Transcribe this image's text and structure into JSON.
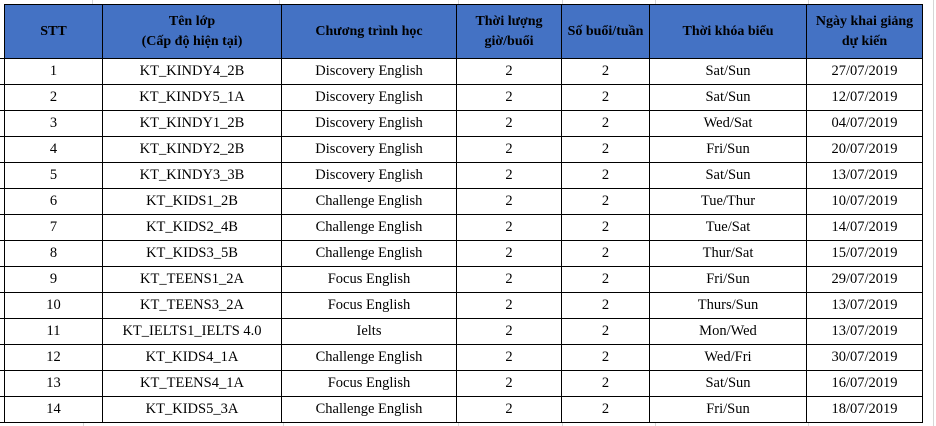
{
  "table": {
    "headers": [
      "STT",
      "Tên lớp\n(Cấp độ hiện tại)",
      "Chương trình học",
      "Thời lượng\ngiờ/buổi",
      "Số buổi/tuần",
      "Thời khóa biểu",
      "Ngày khai giảng\ndự kiến"
    ],
    "rows": [
      [
        "1",
        "KT_KINDY4_2B",
        "Discovery English",
        "2",
        "2",
        "Sat/Sun",
        "27/07/2019"
      ],
      [
        "2",
        "KT_KINDY5_1A",
        "Discovery English",
        "2",
        "2",
        "Sat/Sun",
        "12/07/2019"
      ],
      [
        "3",
        "KT_KINDY1_2B",
        "Discovery English",
        "2",
        "2",
        "Wed/Sat",
        "04/07/2019"
      ],
      [
        "4",
        "KT_KINDY2_2B",
        "Discovery English",
        "2",
        "2",
        "Fri/Sun",
        "20/07/2019"
      ],
      [
        "5",
        "KT_KINDY3_3B",
        "Discovery English",
        "2",
        "2",
        "Sat/Sun",
        "13/07/2019"
      ],
      [
        "6",
        "KT_KIDS1_2B",
        "Challenge English",
        "2",
        "2",
        "Tue/Thur",
        "10/07/2019"
      ],
      [
        "7",
        "KT_KIDS2_4B",
        "Challenge English",
        "2",
        "2",
        "Tue/Sat",
        "14/07/2019"
      ],
      [
        "8",
        "KT_KIDS3_5B",
        "Challenge English",
        "2",
        "2",
        "Thur/Sat",
        "15/07/2019"
      ],
      [
        "9",
        "KT_TEENS1_2A",
        "Focus English",
        "2",
        "2",
        "Fri/Sun",
        "29/07/2019"
      ],
      [
        "10",
        "KT_TEENS3_2A",
        "Focus English",
        "2",
        "2",
        "Thurs/Sun",
        "13/07/2019"
      ],
      [
        "11",
        "KT_IELTS1_IELTS 4.0",
        "Ielts",
        "2",
        "2",
        "Mon/Wed",
        "13/07/2019"
      ],
      [
        "12",
        "KT_KIDS4_1A",
        "Challenge English",
        "2",
        "2",
        "Wed/Fri",
        "30/07/2019"
      ],
      [
        "13",
        "KT_TEENS4_1A",
        "Focus English",
        "2",
        "2",
        "Sat/Sun",
        "16/07/2019"
      ],
      [
        "14",
        "KT_KIDS5_3A",
        "Challenge English",
        "2",
        "2",
        "Fri/Sun",
        "18/07/2019"
      ]
    ],
    "column_names": [
      "stt",
      "class-name",
      "program",
      "hours-per-session",
      "sessions-per-week",
      "weekly-schedule",
      "expected-start-date"
    ]
  },
  "colors": {
    "header_bg": "#4472C4",
    "header_text": "#000000",
    "border": "#000000",
    "gridline": "#d6d6d6"
  }
}
